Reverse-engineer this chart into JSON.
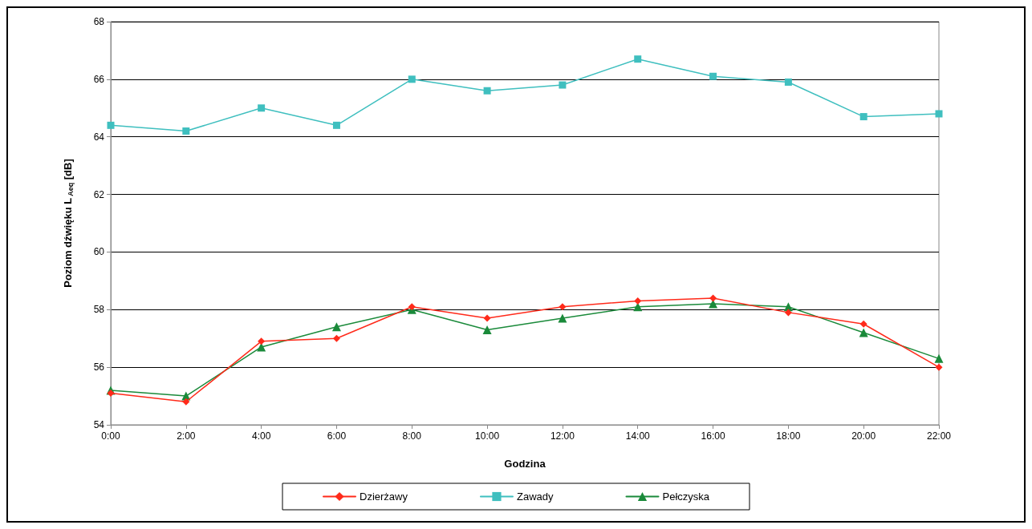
{
  "chart_data": {
    "type": "line",
    "xlabel": "Godzina",
    "ylabel": "Poziom dźwięku L$_{Aeq}$ [dB]",
    "categories": [
      "0:00",
      "2:00",
      "4:00",
      "6:00",
      "8:00",
      "10:00",
      "12:00",
      "14:00",
      "16:00",
      "18:00",
      "20:00",
      "22:00"
    ],
    "series": [
      {
        "name": "Dzierżawy",
        "color": "#ff2a1a",
        "marker": "diamond",
        "values": [
          55.1,
          54.8,
          56.9,
          57.0,
          58.1,
          57.7,
          58.1,
          58.3,
          58.4,
          57.9,
          57.5,
          56.0
        ]
      },
      {
        "name": "Zawady",
        "color": "#3fbfbf",
        "marker": "square",
        "values": [
          64.4,
          64.2,
          65.0,
          64.4,
          66.0,
          65.6,
          65.8,
          66.7,
          66.1,
          65.9,
          64.7,
          64.8
        ]
      },
      {
        "name": "Pełczyska",
        "color": "#1a8a3a",
        "marker": "triangle",
        "values": [
          55.2,
          55.0,
          56.7,
          57.4,
          58.0,
          57.3,
          57.7,
          58.1,
          58.2,
          58.1,
          57.2,
          56.3
        ]
      }
    ],
    "ylim": [
      54,
      68
    ],
    "yticks": [
      54,
      56,
      58,
      60,
      62,
      64,
      66,
      68
    ],
    "grid": "y",
    "legend": "bottom",
    "line_style": "solid"
  }
}
